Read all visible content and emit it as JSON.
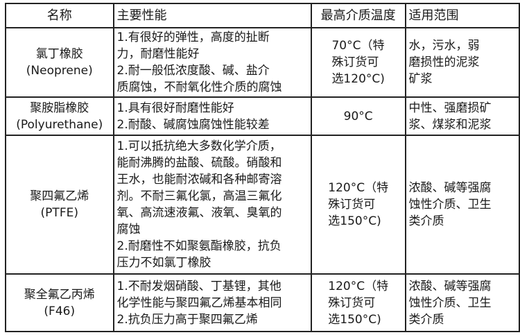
{
  "headers": [
    "名称",
    "主要性能",
    "最高介质温度",
    "适用范围"
  ],
  "rows": [
    {
      "name": [
        "氯丁橡胶",
        "(Neoprene)"
      ],
      "performance": [
        "1.有很好的弹性，高度的扯断",
        "力，耐磨性能好",
        "2.耐一般低浓度酸、碱、盐介",
        "质腐蚀，不耐氧化性介质的腐蚀"
      ],
      "temperature": [
        "70°C（特",
        "殊订货可",
        "选120°C)"
      ],
      "application": [
        "水，污水，弱",
        "磨损性的泥浆",
        "矿浆"
      ],
      "height": 100
    },
    {
      "name": [
        "聚胺脂橡胶",
        "(Polyurethane)"
      ],
      "performance": [
        "1.具有很好耐磨性能好",
        "2.耐酸、碱腐蚀腐蚀性能较差"
      ],
      "temperature": [
        "90°C"
      ],
      "application": [
        "中性、强磨损矿",
        "浆、煤浆和泥浆"
      ],
      "height": 55
    },
    {
      "name": [
        "聚四氟乙烯",
        "(PTFE)"
      ],
      "performance": [
        "1.可以抵抗绝大多数化学介质，",
        "能耐沸腾的盐酸、硫酸。硝酸和",
        "王水，也能耐浓碱和各种邮寄溶",
        "剂。不耐三氟化氯，高温三氟化",
        "氧、高流速液氟、液氧、臭氧的",
        "腐蚀",
        "2.耐磨性不如聚氨酯橡胶，抗负",
        "压力不如氯丁橡胶"
      ],
      "temperature": [
        "120°C（特",
        "殊订货可",
        "选150°C)"
      ],
      "application": [
        "浓酸、碱等强腐",
        "蚀性介质、卫生",
        "类介质"
      ],
      "height": 200
    },
    {
      "name": [
        "聚全氟乙丙烯",
        "(F46)"
      ],
      "performance": [
        "1.不耐发烟硝酸、丁基锂，其他",
        "化学性能与聚四氟乙烯基本相同",
        "2.抗负压力高于聚四氟乙烯"
      ],
      "temperature": [
        "120°C（特",
        "殊订货可",
        "选150°C)"
      ],
      "application": [
        "浓酸、碱等强腐",
        "蚀性介质、卫生",
        "类介质"
      ],
      "height": 83
    }
  ]
}
